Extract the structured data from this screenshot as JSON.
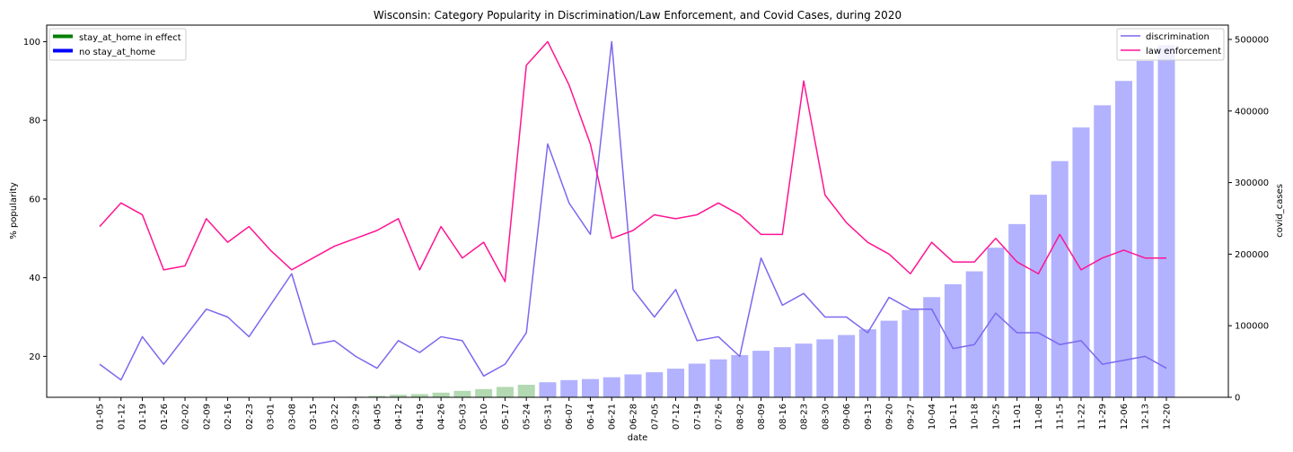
{
  "chart_data": {
    "type": "bar+line",
    "title": "Wisconsin: Category Popularity in Discrimination/Law Enforcement, and Covid Cases, during 2020",
    "xlabel": "date",
    "ylabel": "% popularity",
    "y2label": "covid_cases",
    "ylim": [
      9.6,
      104.2
    ],
    "y2lim": [
      0,
      520000
    ],
    "y_ticks": [
      20,
      40,
      60,
      80,
      100
    ],
    "y2_ticks": [
      0,
      100000,
      200000,
      300000,
      400000,
      500000
    ],
    "categories": [
      "01-05",
      "01-12",
      "01-19",
      "01-26",
      "02-02",
      "02-09",
      "02-16",
      "02-23",
      "03-01",
      "03-08",
      "03-15",
      "03-22",
      "03-29",
      "04-05",
      "04-12",
      "04-19",
      "04-26",
      "05-03",
      "05-10",
      "05-17",
      "05-24",
      "05-31",
      "06-07",
      "06-14",
      "06-21",
      "06-28",
      "07-05",
      "07-12",
      "07-19",
      "07-26",
      "08-02",
      "08-09",
      "08-16",
      "08-23",
      "08-30",
      "09-06",
      "09-13",
      "09-20",
      "09-27",
      "10-04",
      "10-11",
      "10-18",
      "10-25",
      "11-01",
      "11-08",
      "11-15",
      "11-22",
      "11-29",
      "12-06",
      "12-13",
      "12-20"
    ],
    "series": [
      {
        "name": "discrimination",
        "kind": "line",
        "axis": "left",
        "color": "#7b68ee",
        "values": [
          18,
          14,
          25,
          18,
          25,
          32,
          30,
          25,
          33,
          41,
          23,
          24,
          20,
          17,
          24,
          21,
          25,
          24,
          15,
          18,
          26,
          74,
          59,
          51,
          100,
          37,
          30,
          37,
          24,
          25,
          20,
          45,
          33,
          36,
          30,
          30,
          26,
          35,
          32,
          32,
          22,
          23,
          31,
          26,
          26,
          23,
          24,
          18,
          19,
          20,
          17
        ]
      },
      {
        "name": "law enforcement",
        "kind": "line",
        "axis": "left",
        "color": "#ff1493",
        "values": [
          53,
          59,
          56,
          42,
          43,
          55,
          49,
          53,
          47,
          42,
          45,
          48,
          50,
          52,
          55,
          42,
          53,
          45,
          49,
          39,
          94,
          100,
          89,
          74,
          50,
          52,
          56,
          55,
          56,
          59,
          56,
          51,
          51,
          90,
          61,
          54,
          49,
          46,
          41,
          49,
          44,
          44,
          50,
          44,
          41,
          51,
          42,
          45,
          47,
          45,
          45
        ]
      },
      {
        "name": "covid_cases",
        "kind": "bar",
        "axis": "right",
        "values": [
          0,
          0,
          0,
          0,
          0,
          0,
          0,
          0,
          0,
          0,
          20,
          200,
          800,
          2000,
          3500,
          4500,
          6500,
          9000,
          11500,
          14500,
          17500,
          21000,
          24000,
          25500,
          28000,
          32000,
          35000,
          40000,
          47000,
          53000,
          59000,
          65000,
          70000,
          75000,
          81000,
          87000,
          95000,
          107000,
          122000,
          140000,
          158000,
          176000,
          209000,
          242000,
          283000,
          330000,
          377000,
          408000,
          442000,
          470000,
          492000
        ],
        "bar_colors": [
          "#008000",
          "#008000",
          "#008000",
          "#008000",
          "#008000",
          "#008000",
          "#008000",
          "#008000",
          "#008000",
          "#008000",
          "#008000",
          "#008000",
          "#008000",
          "#008000",
          "#008000",
          "#008000",
          "#008000",
          "#008000",
          "#008000",
          "#008000",
          "#008000",
          "#0000ff",
          "#0000ff",
          "#0000ff",
          "#0000ff",
          "#0000ff",
          "#0000ff",
          "#0000ff",
          "#0000ff",
          "#0000ff",
          "#0000ff",
          "#0000ff",
          "#0000ff",
          "#0000ff",
          "#0000ff",
          "#0000ff",
          "#0000ff",
          "#0000ff",
          "#0000ff",
          "#0000ff",
          "#0000ff",
          "#0000ff",
          "#0000ff",
          "#0000ff",
          "#0000ff",
          "#0000ff",
          "#0000ff",
          "#0000ff",
          "#0000ff",
          "#0000ff",
          "#0000ff"
        ]
      }
    ],
    "legend_left": {
      "placement": "top-left",
      "entries": [
        {
          "label": "stay_at_home in effect",
          "color": "#008000"
        },
        {
          "label": "no stay_at_home",
          "color": "#0000ff"
        }
      ]
    },
    "legend_right": {
      "placement": "top-right",
      "entries": [
        {
          "label": "discrimination",
          "color": "#7b68ee"
        },
        {
          "label": "law enforcement",
          "color": "#ff1493"
        }
      ]
    },
    "grid": false
  }
}
